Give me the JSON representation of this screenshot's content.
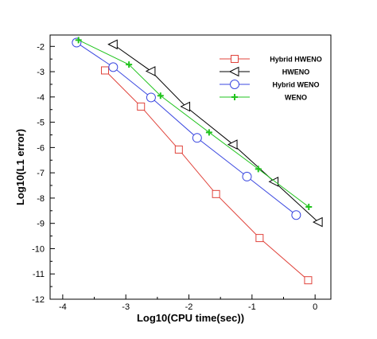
{
  "chart_data": {
    "type": "line",
    "xlabel": "Log10(CPU time(sec))",
    "ylabel": "Log10(L1 error)",
    "xlim": [
      -4.2,
      0.25
    ],
    "ylim": [
      -12,
      -1.55
    ],
    "x_ticks": [
      -4,
      -3,
      -2,
      -1,
      0
    ],
    "y_ticks": [
      -2,
      -3,
      -4,
      -5,
      -6,
      -7,
      -8,
      -9,
      -10,
      -11,
      -12
    ],
    "grid": false,
    "legend_position": "top-right",
    "series": [
      {
        "name": "Hybrid HWENO",
        "color": "#e0433b",
        "marker": "square",
        "x": [
          -3.33,
          -2.76,
          -2.16,
          -1.57,
          -0.88,
          -0.11
        ],
        "y": [
          -2.95,
          -4.38,
          -6.08,
          -7.84,
          -9.58,
          -11.25
        ]
      },
      {
        "name": "HWENO",
        "color": "#000000",
        "marker": "triangle-left",
        "x": [
          -3.2,
          -2.6,
          -2.05,
          -1.3,
          -0.65,
          0.05
        ],
        "y": [
          -1.92,
          -2.98,
          -4.38,
          -5.88,
          -7.35,
          -8.95
        ]
      },
      {
        "name": "Hybrid  WENO",
        "color": "#3b48e0",
        "marker": "circle",
        "x": [
          -3.78,
          -3.2,
          -2.6,
          -1.87,
          -1.08,
          -0.3
        ],
        "y": [
          -1.85,
          -2.82,
          -4.02,
          -5.62,
          -7.15,
          -8.67
        ]
      },
      {
        "name": "WENO",
        "color": "#22c41f",
        "marker": "plus",
        "x": [
          -3.75,
          -2.95,
          -2.45,
          -1.68,
          -0.9,
          -0.1
        ],
        "y": [
          -1.75,
          -2.72,
          -3.95,
          -5.4,
          -6.85,
          -8.35
        ]
      }
    ]
  }
}
